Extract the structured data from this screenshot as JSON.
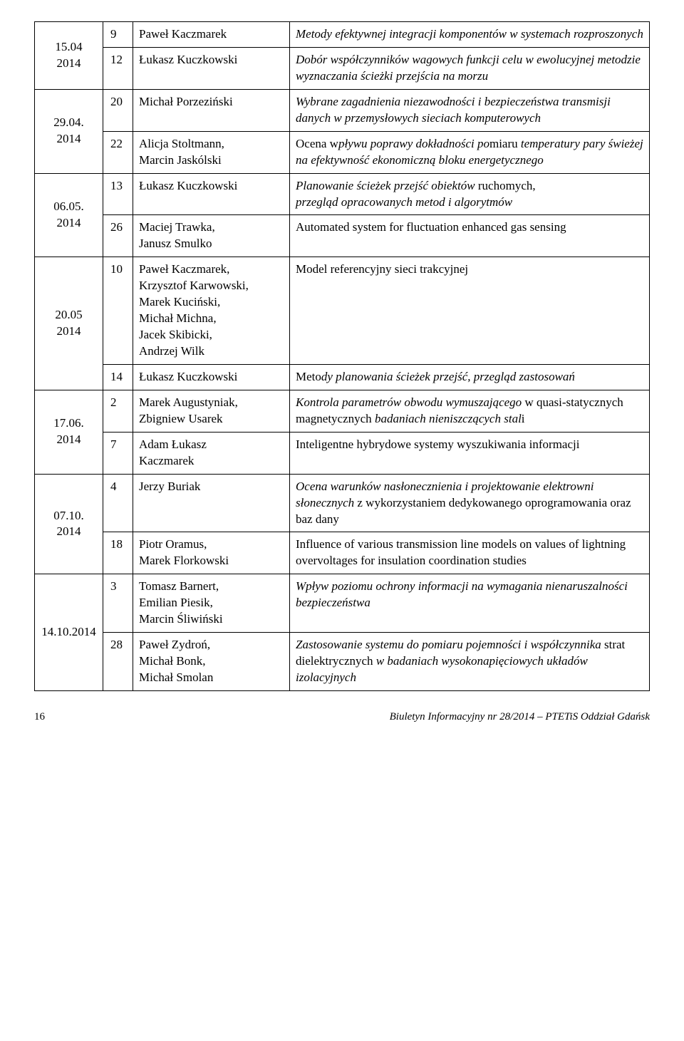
{
  "groups": [
    {
      "date": "15.04\n2014",
      "rows": [
        {
          "num": "9",
          "author": "Paweł Kaczmarek",
          "topic_html": "<span class=\"italic\">Metody efektywnej integracji komponentów w systemach rozproszonych</span>"
        },
        {
          "num": "12",
          "author": "Łukasz Kuczkowski",
          "topic_html": "<span class=\"italic\">Dobór współczynników wagowych funkcji celu w ewolucyjnej metodzie wyznaczania ścieżki przejścia na morzu</span>"
        }
      ]
    },
    {
      "date": "29.04.\n2014",
      "rows": [
        {
          "num": "20",
          "author": "Michał Porzeziński",
          "topic_html": "<span class=\"italic\">Wybrane zagadnienia niezawodności i bezpieczeństwa transmisji danych w przemysłowych sieciach komputerowych</span>"
        },
        {
          "num": "22",
          "author": "Alicja Stoltmann,\nMarcin Jaskólski",
          "topic_html": "Ocena w<span class=\"italic\">pływu poprawy dokładności po</span>miaru <span class=\"italic\">temperatury pary świeżej na efektywność ekonomiczną bloku energetycznego</span>"
        }
      ]
    },
    {
      "date": "06.05.\n2014",
      "rows": [
        {
          "num": "13",
          "author": "Łukasz Kuczkowski",
          "topic_html": "<span class=\"italic\">Planowanie ścieżek przejść obiektów</span> ruchomych,<br><span class=\"italic\">przegląd opracowanych metod i algorytmów</span>"
        },
        {
          "num": "26",
          "author": "Maciej Trawka,\nJanusz Smulko",
          "topic_html": "Automated system for fluctuation enhanced gas sensing"
        }
      ]
    },
    {
      "date": "20.05\n2014",
      "rows": [
        {
          "num": "10",
          "author": "Paweł Kaczmarek,\nKrzysztof Karwowski,\nMarek Kuciński,\nMichał Michna,\nJacek Skibicki,\nAndrzej Wilk",
          "topic_html": "Model referencyjny sieci trakcyjnej"
        },
        {
          "num": "14",
          "author": "Łukasz Kuczkowski",
          "topic_html": "Meto<span class=\"italic\">dy planowania ścieżek przejść, przegląd zastosowań</span>"
        }
      ]
    },
    {
      "date": "17.06.\n2014",
      "rows": [
        {
          "num": "2",
          "author": "Marek Augustyniak,\nZbigniew Usarek",
          "topic_html": "<span class=\"italic\">Kontrola parametrów obwodu wymuszającego</span> w quasi-statycznych magnetycznych <span class=\"italic\">badaniach nieniszczących stal</span>i"
        },
        {
          "num": "7",
          "author": "Adam Łukasz\nKaczmarek",
          "topic_html": "Inteligentne hybrydowe systemy wyszukiwania informacji"
        }
      ]
    },
    {
      "date": "07.10.\n2014",
      "rows": [
        {
          "num": "4",
          "author": "Jerzy Buriak",
          "topic_html": "<span class=\"italic\">Ocena warunków nasłonecznienia i projektowanie elektrowni słonecznych</span> z wykorzystaniem dedykowanego oprogramowania oraz baz dany"
        },
        {
          "num": "18",
          "author": "Piotr Oramus,\nMarek Florkowski",
          "topic_html": "Influence of various transmission line models on values of lightning overvoltages for insulation coordination studies"
        }
      ]
    },
    {
      "date": "14.10.2014",
      "date_plain": true,
      "rows": [
        {
          "num": "3",
          "author": "Tomasz Barnert,\nEmilian Piesik,\nMarcin Śliwiński",
          "topic_html": "<span class=\"italic\">Wpływ poziomu ochrony informacji na wymagania nienaruszalności bezpieczeństwa</span>"
        },
        {
          "num": "28",
          "author": "Paweł Zydroń,\nMichał Bonk,\nMichał Smolan",
          "topic_html": "<span class=\"italic\">Zastosowanie systemu do pomiaru pojemności i współczynnika</span> strat dielektrycznych <span class=\"italic\">w badaniach wysokonapięciowych układów izolacyjnych</span>"
        }
      ]
    }
  ],
  "footer": {
    "page": "16",
    "caption": "Biuletyn Informacyjny nr 28/2014 – PTETiS Oddział Gdańsk"
  }
}
